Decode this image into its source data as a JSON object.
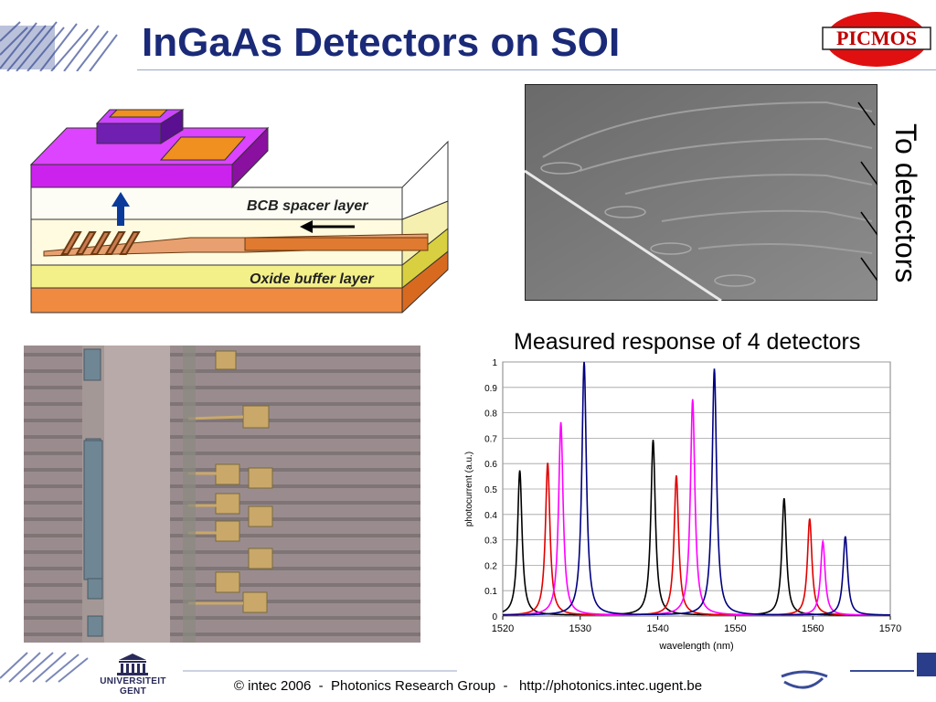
{
  "slide": {
    "title": "InGaAs Detectors on SOI",
    "logo_text": "PICMOS",
    "side_label": "To detectors",
    "schematic": {
      "bcb_label": "BCB spacer layer",
      "oxide_label": "Oxide buffer layer"
    },
    "chart_caption": "Measured response of 4 detectors",
    "footer": {
      "text": "© intec 2006  -  Photonics Research Group  -   http://photonics.intec.ugent.be",
      "university_line1": "UNIVERSITEIT",
      "university_line2": "GENT"
    },
    "colors": {
      "title": "#1a2a78",
      "footer_accent": "#2a3d8a"
    }
  },
  "chart_data": {
    "type": "line",
    "xlabel": "wavelength (nm)",
    "ylabel": "photocurrent (a.u.)",
    "xlim": [
      1520,
      1570
    ],
    "ylim": [
      0,
      1
    ],
    "xticks": [
      "1520",
      "1530",
      "1540",
      "1550",
      "1560",
      "1570"
    ],
    "yticks": [
      "0",
      "0.1",
      "0.2",
      "0.3",
      "0.4",
      "0.5",
      "0.6",
      "0.7",
      "0.8",
      "0.9",
      "1"
    ],
    "grid": true,
    "legend": "none",
    "series": [
      {
        "color": "#000000",
        "peaks": [
          {
            "x": 1522.2,
            "y": 0.57
          },
          {
            "x": 1539.4,
            "y": 0.69
          },
          {
            "x": 1556.3,
            "y": 0.46
          }
        ]
      },
      {
        "color": "#e00000",
        "peaks": [
          {
            "x": 1525.8,
            "y": 0.6
          },
          {
            "x": 1542.4,
            "y": 0.55
          },
          {
            "x": 1559.6,
            "y": 0.38
          }
        ]
      },
      {
        "color": "#ff00ff",
        "peaks": [
          {
            "x": 1527.5,
            "y": 0.76
          },
          {
            "x": 1544.5,
            "y": 0.85
          },
          {
            "x": 1561.3,
            "y": 0.29
          }
        ]
      },
      {
        "color": "#000080",
        "peaks": [
          {
            "x": 1530.5,
            "y": 1.0
          },
          {
            "x": 1547.3,
            "y": 0.97
          },
          {
            "x": 1564.2,
            "y": 0.31
          }
        ]
      }
    ]
  }
}
